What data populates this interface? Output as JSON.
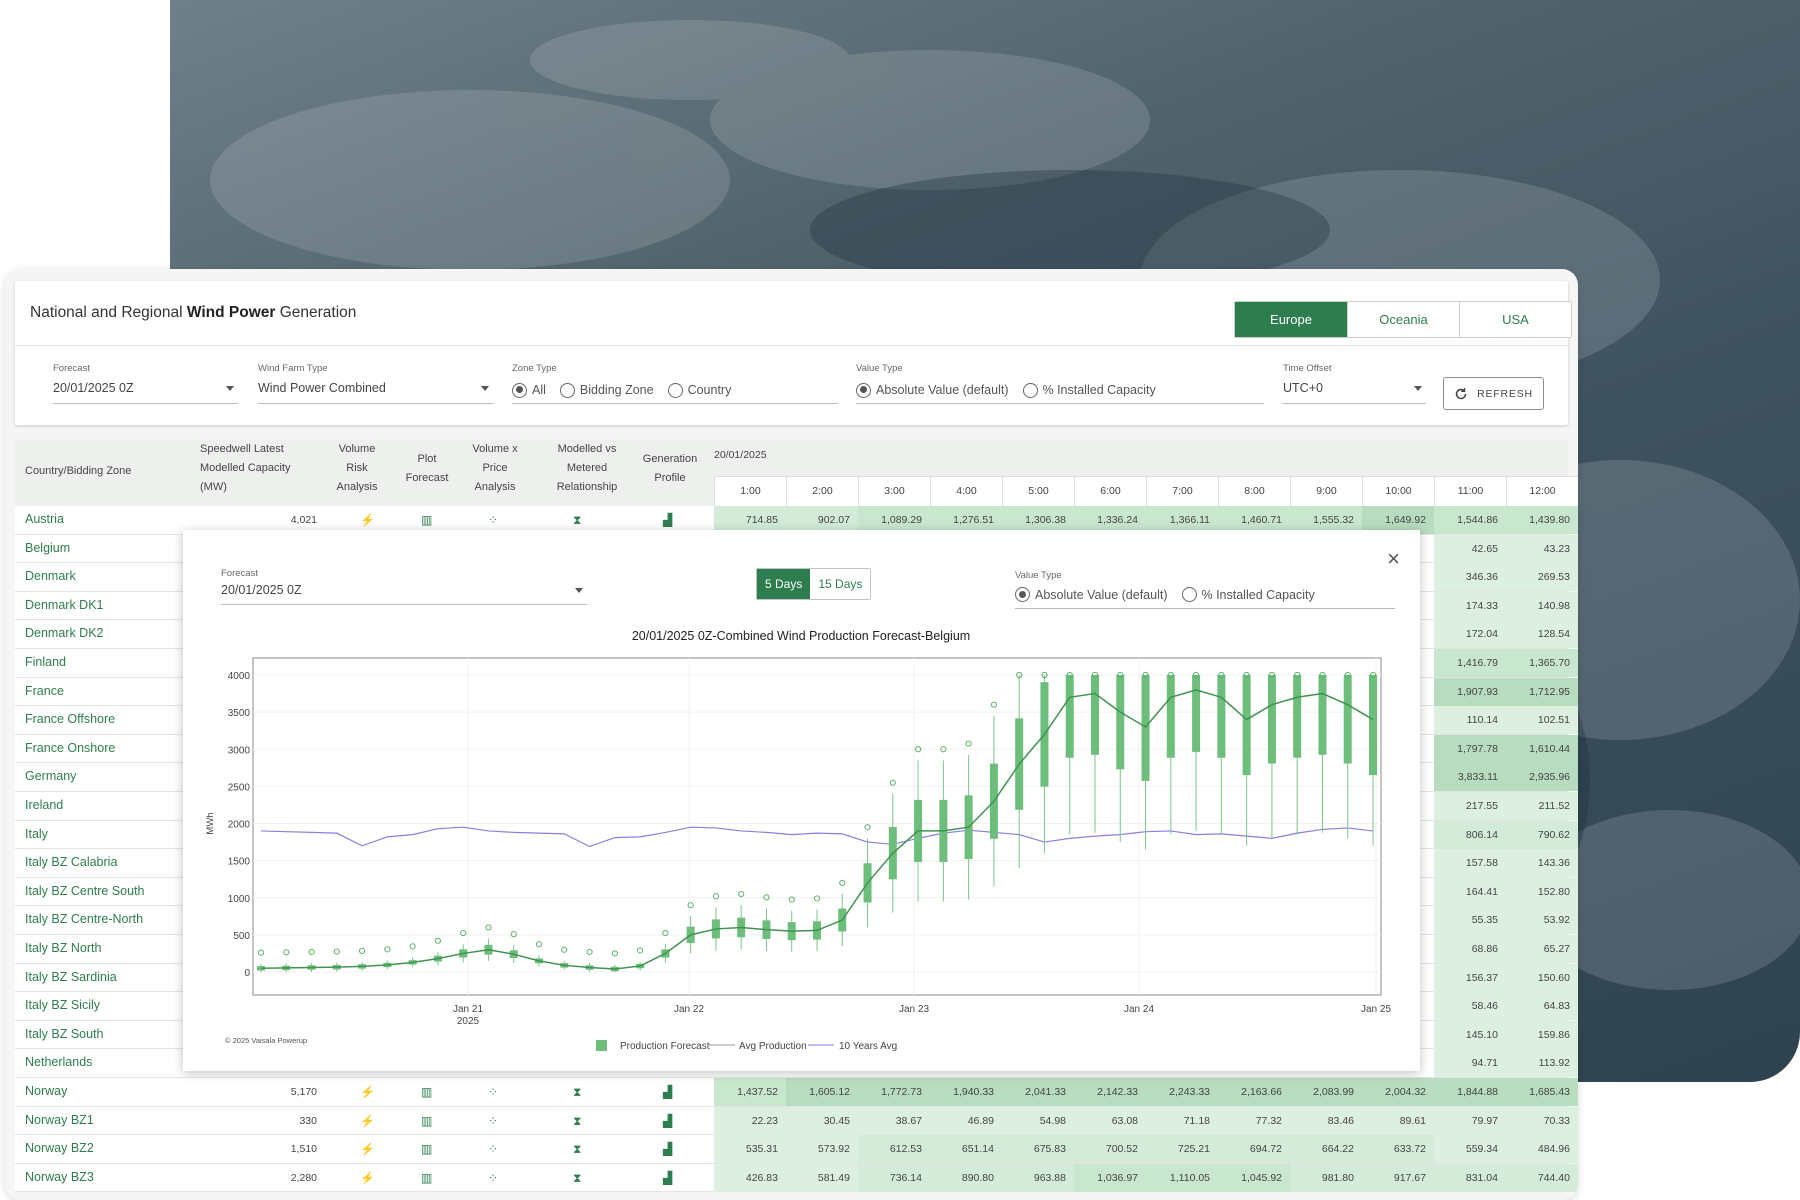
{
  "app": {
    "title_pre": "National and Regional ",
    "title_bold": "Wind Power",
    "title_post": " Generation",
    "regions": [
      "Europe",
      "Oceania",
      "USA"
    ]
  },
  "filters": {
    "forecast_label": "Forecast",
    "forecast_value": "20/01/2025 0Z",
    "farm_label": "Wind Farm Type",
    "farm_value": "Wind Power Combined",
    "zone_label": "Zone Type",
    "zone_options": [
      "All",
      "Bidding Zone",
      "Country"
    ],
    "value_label": "Value Type",
    "value_options": [
      "Absolute Value (default)",
      "% Installed Capacity"
    ],
    "offset_label": "Time Offset",
    "offset_value": "UTC+0",
    "refresh": "REFRESH"
  },
  "table": {
    "col_country": "Country/Bidding Zone",
    "col_capacity": [
      "Speedwell Latest",
      "Modelled Capacity",
      "(MW)"
    ],
    "col_vra": [
      "Volume",
      "Risk",
      "Analysis"
    ],
    "col_plot": [
      "Plot",
      "Forecast"
    ],
    "col_vxp": [
      "Volume x",
      "Price",
      "Analysis"
    ],
    "col_mvm": [
      "Modelled vs",
      "Metered",
      "Relationship"
    ],
    "col_gen": [
      "Generation",
      "Profile"
    ],
    "date": "20/01/2025",
    "hours": [
      "1:00",
      "2:00",
      "3:00",
      "4:00",
      "5:00",
      "6:00",
      "7:00",
      "8:00",
      "9:00",
      "10:00",
      "11:00",
      "12:00"
    ],
    "rows": [
      {
        "name": "Austria",
        "cap": "4,021",
        "icons": true,
        "v": [
          "714.85",
          "902.07",
          "1,089.29",
          "1,276.51",
          "1,306.38",
          "1,336.24",
          "1,366.11",
          "1,460.71",
          "1,555.32",
          "1,649.92",
          "1,544.86",
          "1,439.80"
        ]
      },
      {
        "name": "Belgium",
        "v11": "42.65",
        "v12": "43.23"
      },
      {
        "name": "Denmark",
        "v11": "346.36",
        "v12": "269.53"
      },
      {
        "name": "Denmark DK1",
        "v11": "174.33",
        "v12": "140.98"
      },
      {
        "name": "Denmark DK2",
        "v11": "172.04",
        "v12": "128.54"
      },
      {
        "name": "Finland",
        "v11": "1,416.79",
        "v12": "1,365.70"
      },
      {
        "name": "France",
        "v11": "1,907.93",
        "v12": "1,712.95"
      },
      {
        "name": "France Offshore",
        "v11": "110.14",
        "v12": "102.51"
      },
      {
        "name": "France Onshore",
        "v11": "1,797.78",
        "v12": "1,610.44"
      },
      {
        "name": "Germany",
        "v11": "3,833.11",
        "v12": "2,935.96"
      },
      {
        "name": "Ireland",
        "v11": "217.55",
        "v12": "211.52"
      },
      {
        "name": "Italy",
        "v11": "806.14",
        "v12": "790.62"
      },
      {
        "name": "Italy BZ Calabria",
        "v11": "157.58",
        "v12": "143.36"
      },
      {
        "name": "Italy BZ Centre South",
        "v11": "164.41",
        "v12": "152.80"
      },
      {
        "name": "Italy BZ Centre-North",
        "v11": "55.35",
        "v12": "53.92"
      },
      {
        "name": "Italy BZ North",
        "v11": "68.86",
        "v12": "65.27"
      },
      {
        "name": "Italy BZ Sardinia",
        "v11": "156.37",
        "v12": "150.60"
      },
      {
        "name": "Italy BZ Sicily",
        "v11": "58.46",
        "v12": "64.83"
      },
      {
        "name": "Italy BZ South",
        "v11": "145.10",
        "v12": "159.86"
      },
      {
        "name": "Netherlands",
        "v11": "94.71",
        "v12": "113.92"
      },
      {
        "name": "Norway",
        "cap": "5,170",
        "icons": true,
        "v": [
          "1,437.52",
          "1,605.12",
          "1,772.73",
          "1,940.33",
          "2,041.33",
          "2,142.33",
          "2,243.33",
          "2,163.66",
          "2,083.99",
          "2,004.32",
          "1,844.88",
          "1,685.43"
        ]
      },
      {
        "name": "Norway BZ1",
        "cap": "330",
        "icons": true,
        "v": [
          "22.23",
          "30.45",
          "38.67",
          "46.89",
          "54.98",
          "63.08",
          "71.18",
          "77.32",
          "83.46",
          "89.61",
          "79.97",
          "70.33"
        ]
      },
      {
        "name": "Norway BZ2",
        "cap": "1,510",
        "icons": true,
        "v": [
          "535.31",
          "573.92",
          "612.53",
          "651.14",
          "675.83",
          "700.52",
          "725.21",
          "694.72",
          "664.22",
          "633.72",
          "559.34",
          "484.96"
        ]
      },
      {
        "name": "Norway BZ3",
        "cap": "2,280",
        "icons": true,
        "v": [
          "426.83",
          "581.49",
          "736.14",
          "890.80",
          "963.88",
          "1,036.97",
          "1,110.05",
          "1,045.92",
          "981.80",
          "917.67",
          "831.04",
          "744.40"
        ]
      }
    ]
  },
  "modal": {
    "forecast_label": "Forecast",
    "forecast_value": "20/01/2025 0Z",
    "ranges": [
      "5 Days",
      "15 Days"
    ],
    "value_label": "Value Type",
    "value_options": [
      "Absolute Value (default)",
      "% Installed Capacity"
    ],
    "close": "×"
  },
  "chart_data": {
    "type": "box",
    "title": "20/01/2025 0Z-Combined Wind Production Forecast-Belgium",
    "ylabel": "MWh",
    "ylim": [
      0,
      4000
    ],
    "yticks": [
      0,
      500,
      1000,
      1500,
      2000,
      2500,
      3000,
      3500,
      4000
    ],
    "xticks": [
      "Jan 21",
      "Jan 22",
      "Jan 23",
      "Jan 24",
      "Jan 25"
    ],
    "xtick_sub": "2025",
    "legend": [
      "Production Forecast",
      "Avg Production",
      "10 Years Avg"
    ],
    "copyright": "© 2025 Vaisala Powerup",
    "avg_production": [
      50,
      55,
      60,
      65,
      75,
      95,
      130,
      180,
      250,
      300,
      240,
      150,
      90,
      60,
      40,
      80,
      250,
      500,
      580,
      600,
      570,
      550,
      560,
      700,
      1200,
      1600,
      1900,
      1900,
      1950,
      2300,
      2800,
      3200,
      3700,
      3750,
      3500,
      3300,
      3700,
      3800,
      3700,
      3400,
      3600,
      3700,
      3750,
      3600,
      3400
    ],
    "ten_year_avg": [
      1900,
      1890,
      1880,
      1870,
      1700,
      1820,
      1850,
      1930,
      1950,
      1900,
      1880,
      1870,
      1860,
      1690,
      1810,
      1820,
      1880,
      1950,
      1940,
      1900,
      1880,
      1850,
      1870,
      1860,
      1750,
      1720,
      1800,
      1870,
      1910,
      1880,
      1850,
      1750,
      1800,
      1830,
      1850,
      1890,
      1900,
      1850,
      1860,
      1830,
      1800,
      1870,
      1920,
      1940,
      1900
    ]
  }
}
